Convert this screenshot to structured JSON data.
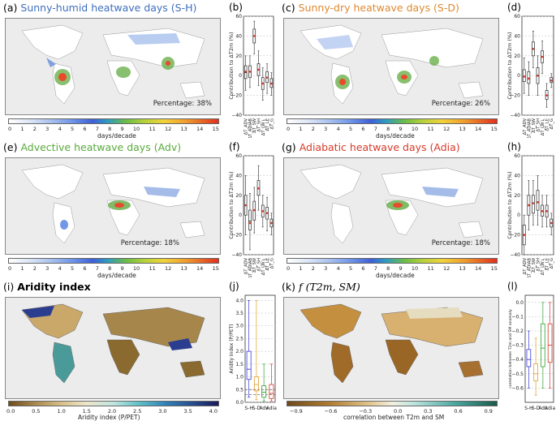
{
  "panels": {
    "a": {
      "label": "(a)",
      "title": "Sunny-humid heatwave days (S-H)",
      "color": "#3f6fbf",
      "percentage": "Percentage: 38%"
    },
    "c": {
      "label": "(c)",
      "title": "Sunny-dry heatwave days (S-D)",
      "color": "#e08a30",
      "percentage": "Percentage: 26%"
    },
    "e": {
      "label": "(e)",
      "title": "Advective heatwave days (Adv)",
      "color": "#5aaa3c",
      "percentage": "Percentage: 18%"
    },
    "g": {
      "label": "(g)",
      "title": "Adiabatic heatwave days (Adia)",
      "color": "#d63a2a",
      "percentage": "Percentage: 18%"
    },
    "i": {
      "label": "(i)",
      "title": "Aridity index",
      "color": "#111111"
    },
    "k": {
      "label": "(k)",
      "title": "f (T2m, SM)",
      "color": "#111111"
    },
    "b": {
      "label": "(b)"
    },
    "d": {
      "label": "(d)"
    },
    "f": {
      "label": "(f)"
    },
    "h": {
      "label": "(h)"
    },
    "j": {
      "label": "(j)"
    },
    "l": {
      "label": "(l)"
    }
  },
  "colorbars": {
    "days": {
      "ticks": [
        "0",
        "1",
        "2",
        "3",
        "4",
        "5",
        "6",
        "7",
        "8",
        "9",
        "10",
        "11",
        "12",
        "13",
        "14",
        "15"
      ],
      "label": "days/decade"
    },
    "aridity": {
      "ticks": [
        "0.0",
        "0.5",
        "1.0",
        "1.5",
        "2.0",
        "2.5",
        "3.0",
        "3.5",
        "4.0"
      ],
      "label": "Aridity index (P/PET)"
    },
    "corr": {
      "ticks": [
        "−0.9",
        "−0.6",
        "−0.3",
        "0.0",
        "0.3",
        "0.6",
        "0.9"
      ],
      "label": "correlation between T2m and SM"
    }
  },
  "boxplots": {
    "ylabel": "Contribution to ΔT2m (%)",
    "yticks": [
      "−40",
      "−20",
      "0",
      "20",
      "40",
      "60"
    ],
    "categories": [
      "ΔT_ADV",
      "ΔT_ADIAB",
      "ΔT_SW",
      "ΔT_SH",
      "ΔT_LW↓",
      "ΔT_LE",
      "ΔT_G"
    ]
  },
  "aridity_box": {
    "ylabel": "Aridity index (P/PET)",
    "yticks": [
      "0.0",
      "0.5",
      "1.0",
      "1.5",
      "2.0",
      "2.5",
      "3.0",
      "3.5",
      "4.0"
    ],
    "categories": [
      "S-H",
      "S-D",
      "Adv",
      "Adia"
    ]
  },
  "corr_box": {
    "ylabel": "correlation between T2m and SM anomaly",
    "yticks": [
      "−0.6",
      "−0.5",
      "−0.4",
      "−0.3",
      "−0.2",
      "−0.1",
      "0.0"
    ],
    "categories": [
      "S-H",
      "S-D",
      "Adv",
      "Adia"
    ]
  },
  "chart_data": [
    {
      "type": "box",
      "panel": "b",
      "ylim": [
        -40,
        60
      ],
      "boxes": [
        {
          "q1": -3,
          "median": 3,
          "q3": 10,
          "min": -15,
          "max": 20,
          "mean": 4
        },
        {
          "q1": -2,
          "median": 4,
          "q3": 10,
          "min": -12,
          "max": 20,
          "mean": 4
        },
        {
          "q1": 33,
          "median": 40,
          "q3": 47,
          "min": 22,
          "max": 55,
          "mean": 40
        },
        {
          "q1": 0,
          "median": 6,
          "q3": 12,
          "min": -10,
          "max": 25,
          "mean": 6
        },
        {
          "q1": -14,
          "median": -8,
          "q3": -2,
          "min": -25,
          "max": 8,
          "mean": -8
        },
        {
          "q1": -7,
          "median": -2,
          "q3": 4,
          "min": -18,
          "max": 12,
          "mean": -2
        },
        {
          "q1": -12,
          "median": -8,
          "q3": -3,
          "min": -20,
          "max": 3,
          "mean": -8
        }
      ]
    },
    {
      "type": "box",
      "panel": "d",
      "ylim": [
        -40,
        60
      ],
      "boxes": [
        {
          "q1": -6,
          "median": -1,
          "q3": 6,
          "min": -18,
          "max": 18,
          "mean": -1
        },
        {
          "q1": -8,
          "median": -3,
          "q3": 4,
          "min": -20,
          "max": 14,
          "mean": -3
        },
        {
          "q1": 20,
          "median": 27,
          "q3": 34,
          "min": 8,
          "max": 45,
          "mean": 27
        },
        {
          "q1": -8,
          "median": 0,
          "q3": 8,
          "min": -20,
          "max": 20,
          "mean": 0
        },
        {
          "q1": 13,
          "median": 19,
          "q3": 25,
          "min": 2,
          "max": 35,
          "mean": 19
        },
        {
          "q1": -24,
          "median": -20,
          "q3": -15,
          "min": -32,
          "max": -8,
          "mean": -20
        },
        {
          "q1": -7,
          "median": -5,
          "q3": -2,
          "min": -12,
          "max": 2,
          "mean": -5
        }
      ]
    },
    {
      "type": "box",
      "panel": "f",
      "ylim": [
        -40,
        60
      ],
      "boxes": [
        {
          "q1": 0,
          "median": 10,
          "q3": 20,
          "min": -20,
          "max": 40,
          "mean": 10
        },
        {
          "q1": -15,
          "median": -6,
          "q3": 5,
          "min": -35,
          "max": 22,
          "mean": -8
        },
        {
          "q1": -5,
          "median": 5,
          "q3": 14,
          "min": -18,
          "max": 28,
          "mean": 5
        },
        {
          "q1": 20,
          "median": 27,
          "q3": 35,
          "min": 5,
          "max": 50,
          "mean": 27
        },
        {
          "q1": -2,
          "median": 4,
          "q3": 10,
          "min": -12,
          "max": 20,
          "mean": 4
        },
        {
          "q1": -4,
          "median": 2,
          "q3": 8,
          "min": -16,
          "max": 18,
          "mean": 2
        },
        {
          "q1": -12,
          "median": -8,
          "q3": -4,
          "min": -20,
          "max": 2,
          "mean": -8
        }
      ]
    },
    {
      "type": "box",
      "panel": "h",
      "ylim": [
        -40,
        60
      ],
      "boxes": [
        {
          "q1": -30,
          "median": -20,
          "q3": -10,
          "min": -40,
          "max": 0,
          "mean": -20
        },
        {
          "q1": 0,
          "median": 10,
          "q3": 20,
          "min": -15,
          "max": 35,
          "mean": 10
        },
        {
          "q1": 2,
          "median": 12,
          "q3": 20,
          "min": -10,
          "max": 35,
          "mean": 12
        },
        {
          "q1": 5,
          "median": 13,
          "q3": 25,
          "min": -10,
          "max": 40,
          "mean": 13
        },
        {
          "q1": -1,
          "median": 4,
          "q3": 10,
          "min": -12,
          "max": 20,
          "mean": 4
        },
        {
          "q1": -2,
          "median": 4,
          "q3": 10,
          "min": -12,
          "max": 20,
          "mean": 4
        },
        {
          "q1": -12,
          "median": -8,
          "q3": -4,
          "min": -20,
          "max": 2,
          "mean": -8
        }
      ]
    },
    {
      "type": "box",
      "panel": "j",
      "ylim": [
        0,
        4.2
      ],
      "reference_lines": [
        0.3,
        0.5
      ],
      "boxes": [
        {
          "name": "S-H",
          "q1": 0.9,
          "median": 1.3,
          "q3": 2.0,
          "min": 0.2,
          "max": 4.0
        },
        {
          "name": "S-D",
          "q1": 0.45,
          "median": 0.7,
          "q3": 1.0,
          "min": 0.1,
          "max": 4.0
        },
        {
          "name": "Adv",
          "q1": 0.2,
          "median": 0.4,
          "q3": 0.65,
          "min": 0.05,
          "max": 1.5
        },
        {
          "name": "Adia",
          "q1": 0.15,
          "median": 0.35,
          "q3": 0.7,
          "min": 0.05,
          "max": 1.5
        }
      ]
    },
    {
      "type": "box",
      "panel": "l",
      "ylim": [
        -0.7,
        0.05
      ],
      "boxes": [
        {
          "name": "S-H",
          "q1": -0.45,
          "median": -0.4,
          "q3": -0.33,
          "min": -0.6,
          "max": -0.2
        },
        {
          "name": "S-D",
          "q1": -0.55,
          "median": -0.5,
          "q3": -0.43,
          "min": -0.65,
          "max": -0.25
        },
        {
          "name": "Adv",
          "q1": -0.45,
          "median": -0.32,
          "q3": -0.15,
          "min": -0.6,
          "max": 0.0
        },
        {
          "name": "Adia",
          "q1": -0.42,
          "median": -0.3,
          "q3": -0.15,
          "min": -0.6,
          "max": 0.0
        }
      ]
    }
  ],
  "colors": {
    "box": "#444444",
    "mean": "#d63a2a",
    "aridity_boxes": [
      "#3b3bdc",
      "#e0a030",
      "#2ea02e",
      "#d63a2a"
    ]
  }
}
